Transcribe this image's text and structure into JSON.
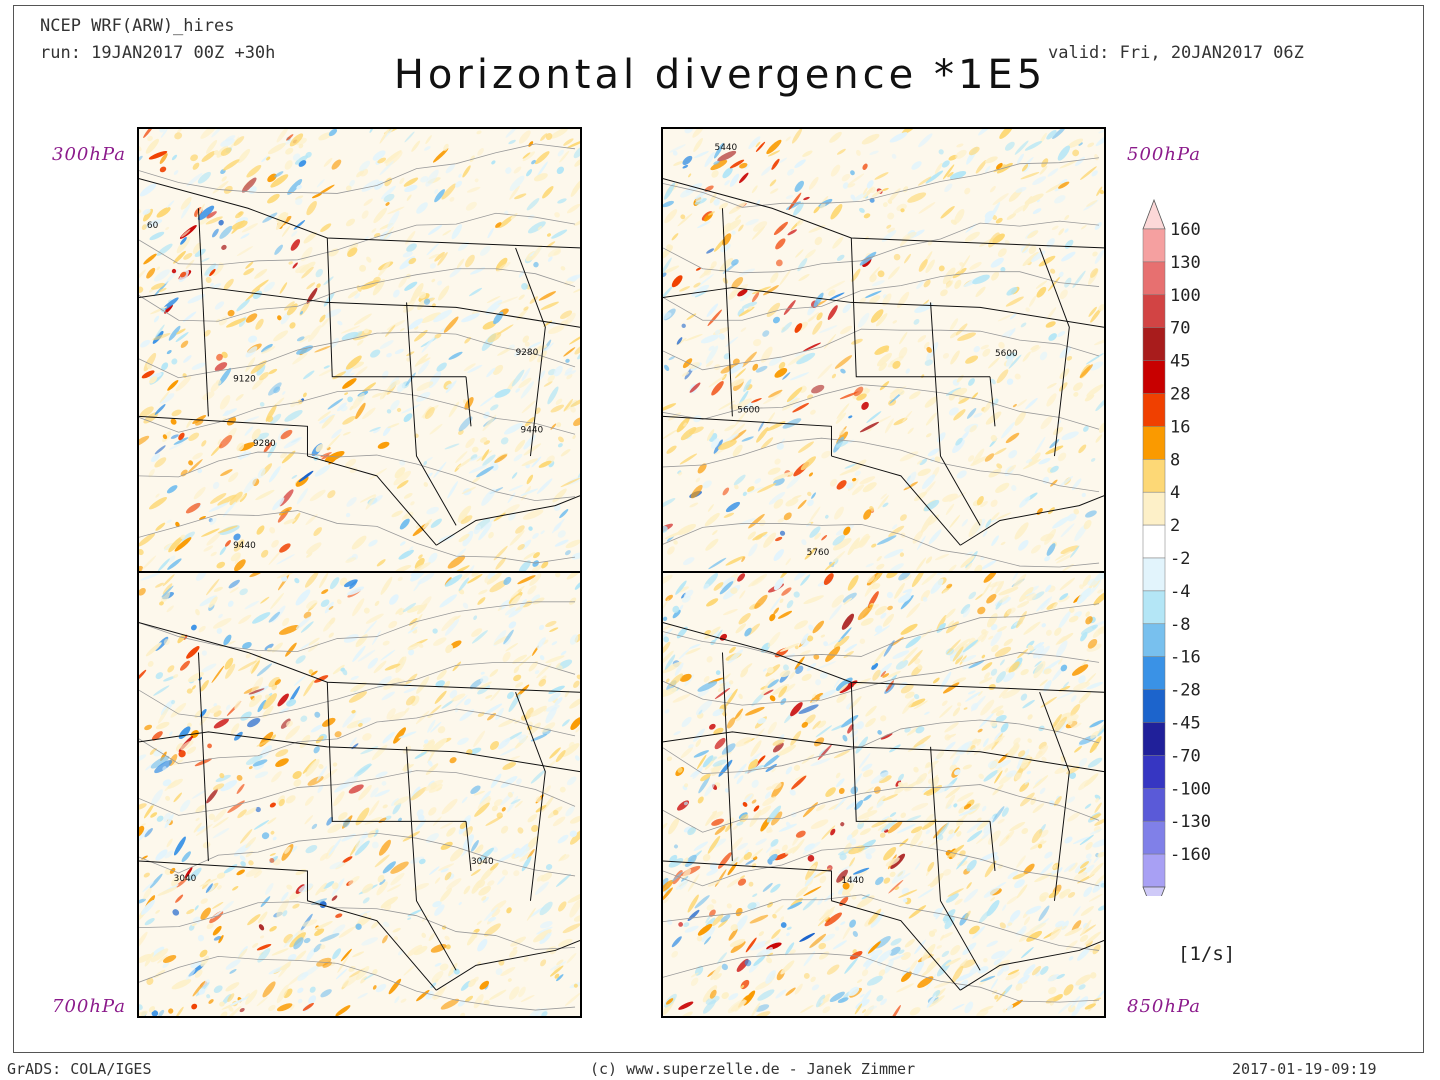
{
  "header": {
    "model": "NCEP WRF(ARW)_hires",
    "run": "run: 19JAN2017 00Z +30h",
    "valid": "valid: Fri, 20JAN2017 06Z",
    "title": "Horizontal divergence *1E5"
  },
  "panels": [
    {
      "id": "p300",
      "level": "300hPa",
      "labels": [
        "60",
        "9120",
        "9280",
        "9280",
        "9440",
        "9440"
      ]
    },
    {
      "id": "p500",
      "level": "500hPa",
      "labels": [
        "5440",
        "5600",
        "5600",
        "5760"
      ]
    },
    {
      "id": "p700",
      "level": "700hPa",
      "labels": [
        "3040",
        "3040"
      ]
    },
    {
      "id": "p850",
      "level": "850hPa",
      "labels": [
        "1440"
      ]
    }
  ],
  "legend": {
    "unit": "[1/s]",
    "levels": [
      "160",
      "130",
      "100",
      "70",
      "45",
      "28",
      "16",
      "8",
      "4",
      "2",
      "-2",
      "-4",
      "-8",
      "-16",
      "-28",
      "-45",
      "-70",
      "-100",
      "-130",
      "-160"
    ],
    "colors": [
      "#f5a0a0",
      "#e77070",
      "#d24444",
      "#a81c1c",
      "#c80000",
      "#f04000",
      "#fa9a00",
      "#fdd876",
      "#fdf0c8",
      "#ffffff",
      "#e2f4fc",
      "#b4e6f6",
      "#78c0ee",
      "#3a92e6",
      "#1c64cc",
      "#20209a",
      "#3636c2",
      "#5a5ad8",
      "#8080e8",
      "#a8a0f4"
    ],
    "top_color": "#fcd8d8",
    "bottom_color": "#cfcaf8"
  },
  "footer": {
    "left": "GrADS: COLA/IGES",
    "center": "(c) www.superzelle.de - Janek Zimmer",
    "right": "2017-01-19-09:19"
  }
}
